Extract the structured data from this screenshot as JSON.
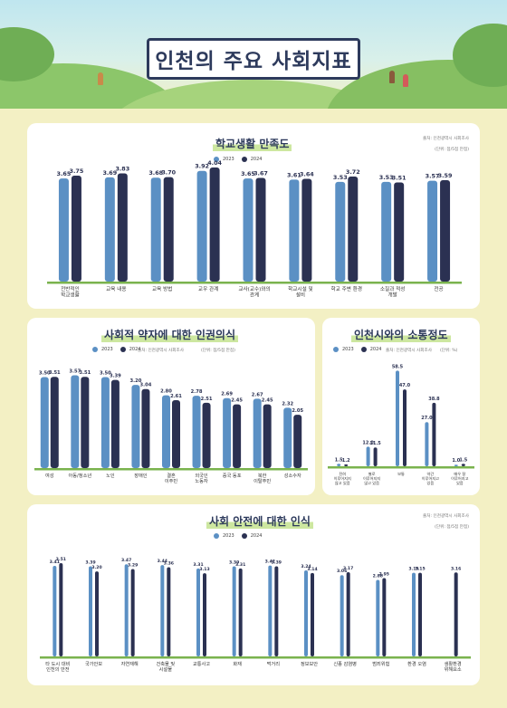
{
  "header": {
    "title": "인천의 주요 사회지표"
  },
  "colors": {
    "c2023": "#5b90c4",
    "c2024": "#2b3152",
    "accent": "#7ab34e",
    "title": "#2d3a5c"
  },
  "chart_data": [
    {
      "type": "bar",
      "title": "학교생활 만족도",
      "source": "출처: 인천광역시 사회조사",
      "unit": "(단위: 점/5점 만점)",
      "categories": [
        "전반적인\n학교생활",
        "교육 내용",
        "교육 방법",
        "교우 관계",
        "교사(교수)와의\n관계",
        "학교시설 및\n설비",
        "학교 주변 환경",
        "소질과 적성\n개발",
        "전공"
      ],
      "series": [
        {
          "name": "2023",
          "values": [
            3.65,
            3.69,
            3.68,
            3.92,
            3.65,
            3.61,
            3.53,
            3.53,
            3.57
          ]
        },
        {
          "name": "2024",
          "values": [
            3.75,
            3.83,
            3.7,
            4.04,
            3.67,
            3.64,
            3.72,
            3.51,
            3.59
          ]
        }
      ],
      "ylim": [
        0,
        4.2
      ]
    },
    {
      "type": "bar",
      "title": "사회적 약자에 대한 인권의식",
      "source": "출처: 인천광역시 사회조사",
      "unit": "(단위: 점/5점 만점)",
      "categories": [
        "여성",
        "아동/청소년",
        "노인",
        "장애인",
        "결혼\n이주민",
        "외국인\n노동자",
        "중국 동포",
        "북한\n이탈주민",
        "성소수자"
      ],
      "series": [
        {
          "name": "2023",
          "values": [
            3.5,
            3.57,
            3.5,
            3.2,
            2.8,
            2.78,
            2.69,
            2.67,
            2.32
          ]
        },
        {
          "name": "2024",
          "values": [
            3.51,
            3.51,
            3.39,
            3.04,
            2.61,
            2.51,
            2.45,
            2.45,
            2.05
          ]
        }
      ],
      "ylim": [
        0,
        3.9
      ]
    },
    {
      "type": "bar",
      "title": "인천시와의 소통정도",
      "source": "출처: 인천광역시 사회조사",
      "unit": "(단위: %)",
      "categories": [
        "전혀\n이루어지지\n않고 있음",
        "별로\n이루어지지\n않고 있음",
        "보통",
        "약간\n이루어지고\n있음",
        "매우 잘\n이루어지고\n있음"
      ],
      "series": [
        {
          "name": "2023",
          "values": [
            1.5,
            12.0,
            58.5,
            27.0,
            1.0
          ]
        },
        {
          "name": "2024",
          "values": [
            1.2,
            11.5,
            47.0,
            38.8,
            1.5
          ]
        }
      ],
      "ylim": [
        0,
        62
      ]
    },
    {
      "type": "bar",
      "title": "사회 안전에 대한 인식",
      "source": "출처: 인천광역시 사회조사",
      "unit": "(단위: 점/5점 만점)",
      "categories": [
        "타 도시 대비\n인천의 안전",
        "국가안보",
        "자연재해",
        "건축물 및\n시설물",
        "교통사고",
        "화재",
        "먹거리",
        "정보보안",
        "신종 감염병",
        "범죄위험",
        "환경 오염",
        "생활환경\n위해요소"
      ],
      "series": [
        {
          "name": "2023",
          "values": [
            3.41,
            3.39,
            3.47,
            3.44,
            3.31,
            3.39,
            3.42,
            3.24,
            3.06,
            2.88,
            3.15,
            null
          ]
        },
        {
          "name": "2024",
          "values": [
            3.51,
            3.2,
            3.29,
            3.36,
            3.13,
            3.31,
            3.39,
            3.14,
            3.17,
            2.95,
            3.15,
            3.16
          ]
        }
      ],
      "ylim": [
        0,
        3.75
      ]
    }
  ],
  "legend": {
    "y2023": "2023",
    "y2024": "2024"
  }
}
